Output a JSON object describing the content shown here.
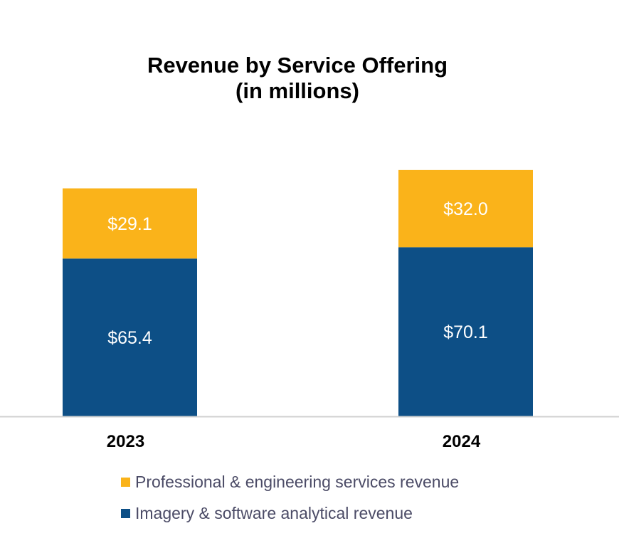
{
  "chart_data": {
    "type": "bar",
    "stacked": true,
    "title": "Revenue by Service Offering",
    "subtitle": "(in millions)",
    "categories": [
      "2023",
      "2024"
    ],
    "series": [
      {
        "name": "Imagery & software analytical revenue",
        "values": [
          65.4,
          70.1
        ],
        "labels": [
          "$65.4",
          "$70.1"
        ],
        "color": "#0d4f86"
      },
      {
        "name": "Professional & engineering services revenue",
        "values": [
          29.1,
          32.0
        ],
        "labels": [
          "$29.1",
          "$32.0"
        ],
        "color": "#fab31a"
      }
    ],
    "legend_order": [
      1,
      0
    ],
    "legend_position": "bottom",
    "grid": false,
    "y_axis_visible": false
  }
}
